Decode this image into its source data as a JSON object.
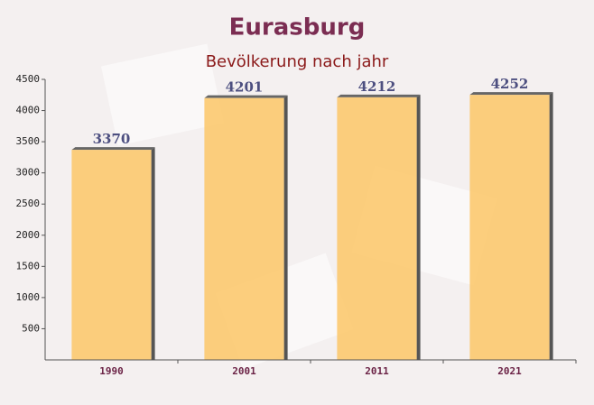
{
  "chart_data": {
    "type": "bar",
    "title": "Eurasburg",
    "subtitle": "Bevölkerung nach jahr",
    "categories": [
      "1990",
      "2001",
      "2011",
      "2021"
    ],
    "values": [
      3370,
      4201,
      4212,
      4252
    ],
    "color": "#fcc96f",
    "ylim": [
      0,
      4500
    ],
    "yticks": [
      500,
      1000,
      1500,
      2000,
      2500,
      3000,
      3500,
      4000,
      4500
    ],
    "grid": false
  }
}
